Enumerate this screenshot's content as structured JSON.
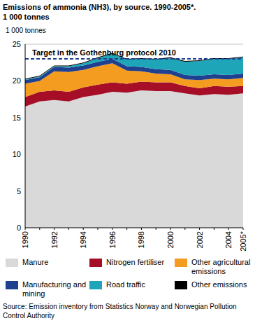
{
  "chart_data": {
    "type": "area",
    "stacked": true,
    "title": "Emissions of ammonia (NH3), by source. 1990-2005*.",
    "subtitle": "1 000 tonnes",
    "y_label": "1 000 tonnes",
    "source": "Source: Emission inventory from Statistics Norway and Norwegian Pollution Control Authority",
    "categories": [
      "1990",
      null,
      "1992",
      null,
      "1994",
      null,
      "1996",
      null,
      "1998",
      null,
      "2000",
      null,
      "2002",
      null,
      "2004",
      "2005*"
    ],
    "ylim": [
      0,
      25
    ],
    "yticks": [
      0,
      5,
      10,
      15,
      20,
      25
    ],
    "grid": true,
    "legend": "bottom",
    "reference_line": {
      "value": 23,
      "label": "Target in the Gothenburg protocol 2010",
      "color": "#1f3f8f",
      "line_style": "dashed"
    },
    "series": [
      {
        "name": "Manure",
        "color": "#d9d9d9",
        "values": [
          16.5,
          17.2,
          17.4,
          17.2,
          17.8,
          18.1,
          18.5,
          18.4,
          18.7,
          18.6,
          18.6,
          18.3,
          18.0,
          18.2,
          18.1,
          18.3
        ]
      },
      {
        "name": "Nitrogen fertiliser",
        "color": "#a50e26",
        "values": [
          1.3,
          1.3,
          1.3,
          1.3,
          1.3,
          1.4,
          1.3,
          1.2,
          1.2,
          1.2,
          1.2,
          1.0,
          1.0,
          1.1,
          1.1,
          1.0
        ]
      },
      {
        "name": "Other agricultural emissions",
        "color": "#f39c1f",
        "values": [
          1.8,
          1.5,
          2.6,
          2.7,
          2.4,
          2.5,
          2.6,
          1.8,
          1.4,
          1.2,
          1.1,
          0.9,
          1.1,
          1.0,
          1.0,
          1.1
        ]
      },
      {
        "name": "Manufacturing and mining",
        "color": "#1f3f8f",
        "values": [
          0.5,
          0.5,
          0.6,
          0.6,
          0.6,
          0.6,
          0.6,
          0.6,
          0.6,
          0.6,
          0.6,
          0.6,
          0.6,
          0.6,
          0.6,
          0.6
        ]
      },
      {
        "name": "Road traffic",
        "color": "#1ea6b8",
        "values": [
          0.1,
          0.1,
          0.1,
          0.2,
          0.3,
          0.5,
          0.7,
          0.9,
          1.1,
          1.3,
          1.6,
          1.8,
          2.0,
          2.1,
          2.2,
          2.2
        ]
      },
      {
        "name": "Other emissions",
        "color": "#000000",
        "values": [
          0.1,
          0.1,
          0.1,
          0.1,
          0.1,
          0.1,
          0.1,
          0.1,
          0.1,
          0.1,
          0.1,
          0.1,
          0.1,
          0.1,
          0.1,
          0.1
        ]
      }
    ]
  }
}
